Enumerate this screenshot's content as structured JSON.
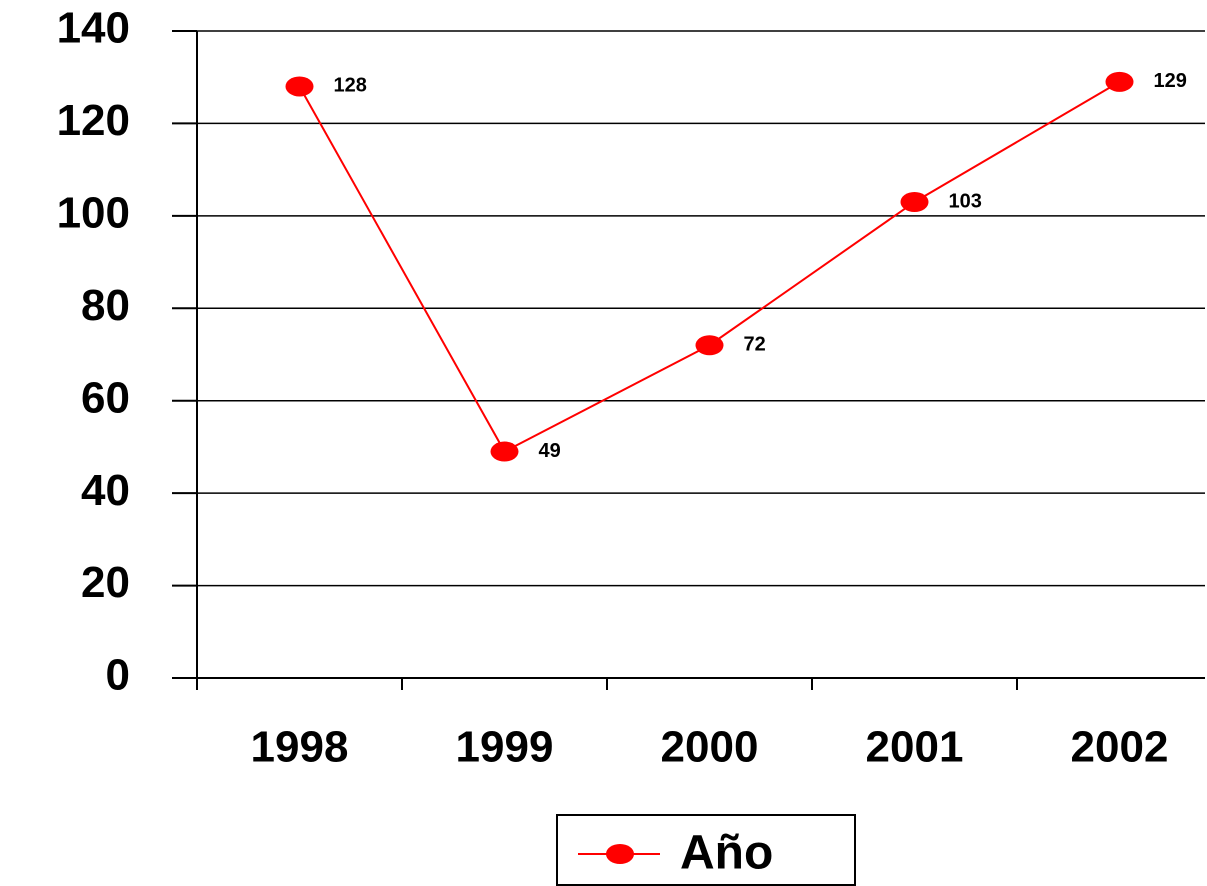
{
  "chart_data": {
    "type": "line",
    "categories": [
      "1998",
      "1999",
      "2000",
      "2001",
      "2002"
    ],
    "series": [
      {
        "name": "Año",
        "color": "#ff0000",
        "values": [
          128,
          49,
          72,
          103,
          129
        ]
      }
    ],
    "ylim": [
      0,
      140
    ],
    "yticks": [
      0,
      20,
      40,
      60,
      80,
      100,
      120,
      140
    ],
    "grid": true,
    "legend": "bottom"
  }
}
